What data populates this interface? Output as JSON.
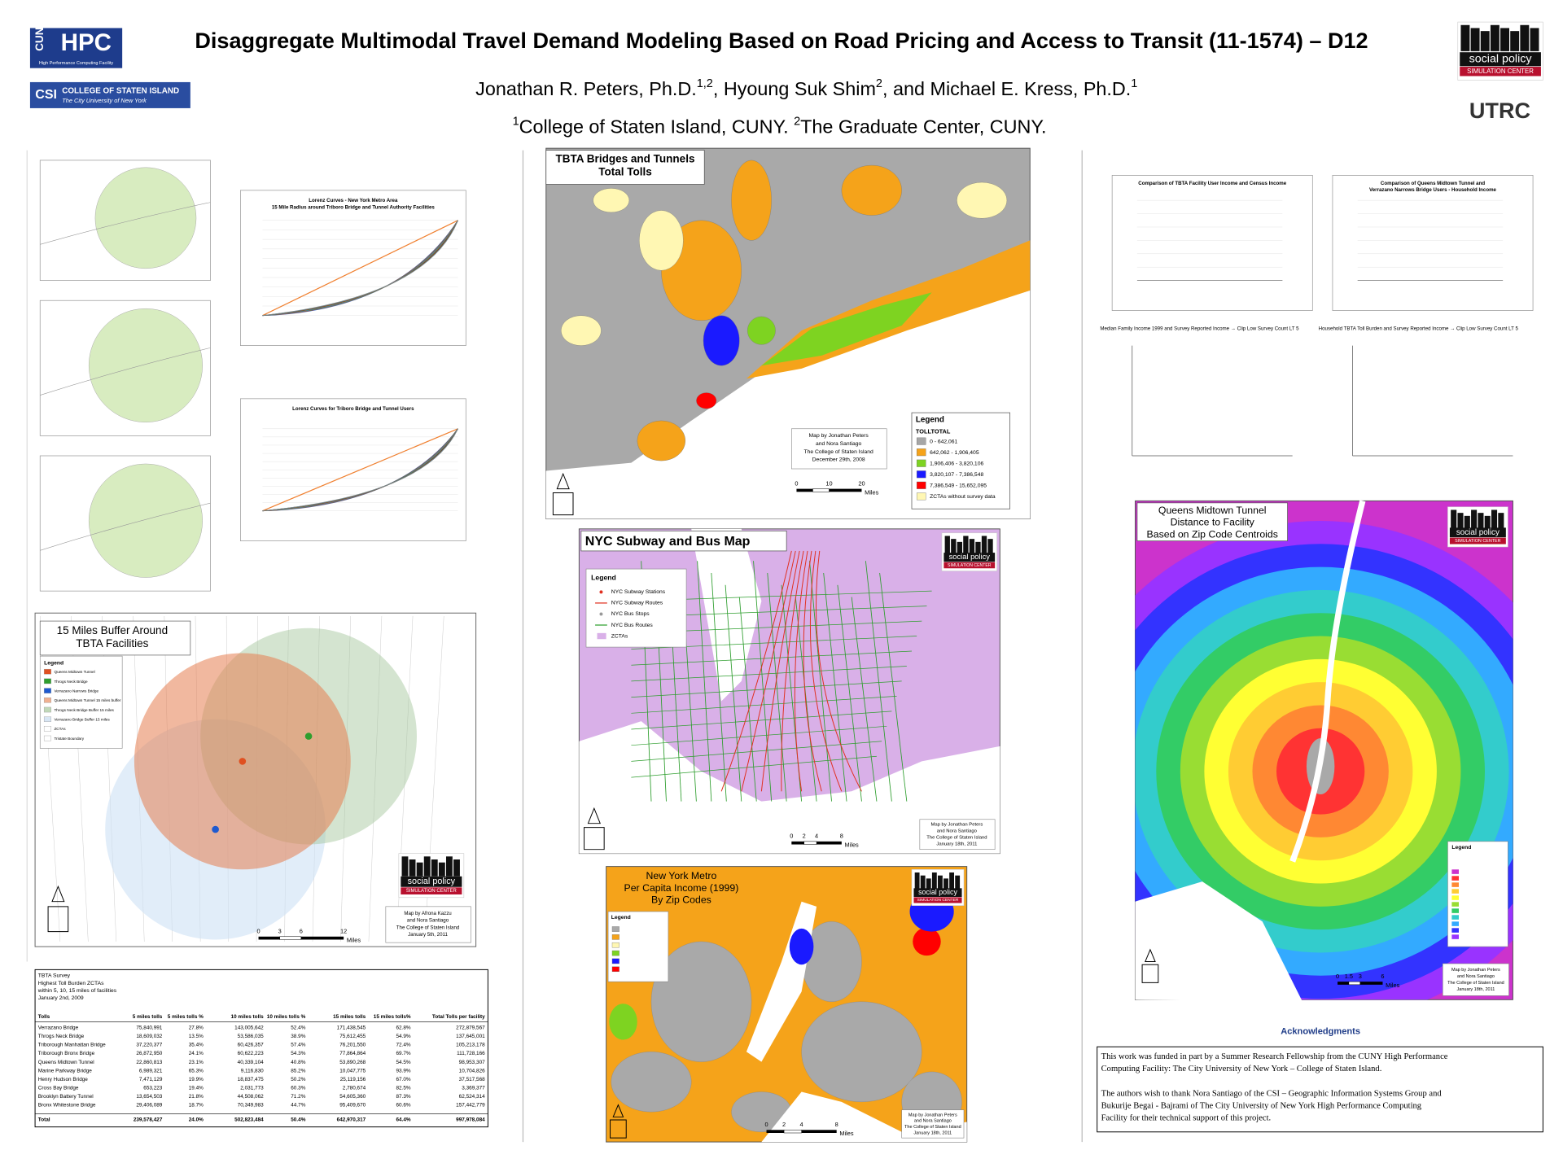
{
  "header": {
    "title": "Disaggregate Multimodal Travel Demand Modeling Based on Road Pricing and Access to Transit (11-1574) – D12",
    "authors": [
      "Jonathan R. Peters, Ph.D.",
      "1,2",
      ", Hyoung Suk Shim",
      "2",
      ", and Michael E. Kress, Ph.D.",
      "1"
    ],
    "affiliations": [
      "1",
      "College of Staten Island, CUNY. ",
      "2",
      "The Graduate Center, CUNY."
    ]
  },
  "logos": {
    "cuny": "CUNY",
    "hpc": "HPC",
    "hpc_sub": "High Performance Computing Facility",
    "csi": "CSI",
    "csi_name": "COLLEGE OF STATEN ISLAND",
    "csi_sub": "The City University of New York",
    "spsc": "social policy",
    "spsc_sub": "SIMULATION CENTER",
    "utrc": "UTRC"
  },
  "lorenz": {
    "chart1_title": [
      "Lorenz Curves - New York Metro Area",
      "15 Mile Radius around Triboro Bridge and Tunnel Authority Facilities"
    ],
    "chart2_title": [
      "Lorenz Curves for Triboro Bridge and Tunnel Users"
    ]
  },
  "buffer_map": {
    "title": [
      "15 Miles Buffer Around",
      "TBTA Facilities"
    ],
    "legend_title": "Legend",
    "legend": [
      "Queens Midtown Tunnel",
      "Throgs Neck Bridge",
      "Verrazano Narrows Bridge",
      "Queens Midtown Tunnel 15 miles buffer",
      "Throgs Neck Bridge Buffer 15 miles",
      "Verrazano Bridge Buffer 15 miles",
      "ZCTAs",
      "Tristate Boundary"
    ],
    "credit": [
      "Map by Afrona Kazzu",
      "and Nora Santiago",
      "The College of Staten Island",
      "January 5th, 2011"
    ],
    "scale": [
      "0",
      "3",
      "6",
      "12",
      "Miles"
    ]
  },
  "table": {
    "caption": [
      "TBTA Survey",
      "Highest Toll Burden ZCTAs",
      "within 5, 10, 15 miles of facilities",
      "January 2nd, 2009"
    ],
    "header": [
      "Tolls",
      "5 miles tolls",
      "5 miles tolls %",
      "10 miles tolls",
      "10 miles tolls %",
      "15 miles tolls",
      "15 miles tolls%",
      "Total Tolls per facility"
    ],
    "rows": [
      [
        "Verrazano Bridge",
        "75,840,991",
        "27.8%",
        "143,005,642",
        "52.4%",
        "171,438,545",
        "62.8%",
        "272,879,567"
      ],
      [
        "Throgs Neck Bridge",
        "18,609,032",
        "13.5%",
        "53,586,035",
        "38.9%",
        "75,612,455",
        "54.9%",
        "137,645,001"
      ],
      [
        "Triborough Manhattan Bridge",
        "37,220,377",
        "35.4%",
        "60,426,357",
        "57.4%",
        "76,201,550",
        "72.4%",
        "105,213,178"
      ],
      [
        "Triborough Bronx Bridge",
        "26,872,950",
        "24.1%",
        "60,622,223",
        "54.3%",
        "77,864,864",
        "69.7%",
        "111,728,166"
      ],
      [
        "Queens Midtown Tunnel",
        "22,860,813",
        "23.1%",
        "40,339,104",
        "40.8%",
        "53,890,268",
        "54.5%",
        "98,953,307"
      ],
      [
        "Marine Parkway Bridge",
        "6,989,321",
        "65.3%",
        "9,116,830",
        "85.2%",
        "10,047,775",
        "93.9%",
        "10,704,826"
      ],
      [
        "Henry Hudson Bridge",
        "7,471,129",
        "19.9%",
        "18,837,475",
        "50.2%",
        "25,119,156",
        "67.0%",
        "37,517,568"
      ],
      [
        "Cross Bay Bridge",
        "653,223",
        "19.4%",
        "2,031,773",
        "60.3%",
        "2,780,674",
        "82.5%",
        "3,369,377"
      ],
      [
        "Brooklyn Battery Tunnel",
        "13,654,503",
        "21.8%",
        "44,508,062",
        "71.2%",
        "54,605,360",
        "87.3%",
        "62,524,314"
      ],
      [
        "Bronx Whitestone Bridge",
        "29,406,089",
        "18.7%",
        "70,349,983",
        "44.7%",
        "95,409,670",
        "60.6%",
        "157,442,779"
      ]
    ],
    "total": [
      "Total",
      "239,578,427",
      "24.0%",
      "502,823,484",
      "50.4%",
      "642,970,317",
      "64.4%",
      "997,978,084"
    ]
  },
  "tolls_map": {
    "title": [
      "TBTA Bridges and Tunnels",
      "Total Tolls"
    ],
    "legend_title": "Legend",
    "field": "TOLLTOTAL",
    "legend": [
      {
        "label": "0 - 642,061",
        "color": "#a6a6a6"
      },
      {
        "label": "642,062 - 1,906,405",
        "color": "#f5a31a"
      },
      {
        "label": "1,906,406 - 3,820,106",
        "color": "#7ed321"
      },
      {
        "label": "3,820,107 - 7,386,548",
        "color": "#1a1aff"
      },
      {
        "label": "7,386,549 - 15,652,095",
        "color": "#ff0000"
      },
      {
        "label": "ZCTAs without survey data",
        "color": "#fff7b3"
      }
    ],
    "credit": [
      "Map by Jonathan Peters",
      "and Nora Santiago",
      "The College of Staten Island",
      "December 29th, 2008"
    ],
    "scale": [
      "0",
      "10",
      "20",
      "Miles"
    ]
  },
  "subway_map": {
    "title": "NYC Subway and Bus Map",
    "legend_title": "Legend",
    "legend": [
      {
        "label": "NYC Subway Stations",
        "color": "#e03020"
      },
      {
        "label": "NYC Subway Routes",
        "color": "#e03020"
      },
      {
        "label": "NYC Bus Stops",
        "color": "#999999"
      },
      {
        "label": "NYC Bus Routes",
        "color": "#2e9e2e"
      },
      {
        "label": "ZCTAs",
        "color": "#d9b0e8"
      }
    ],
    "credit": [
      "Map by Jonathan Peters",
      "and Nora Santiago",
      "The College of Staten Island",
      "January 18th, 2011"
    ],
    "scale": [
      "0",
      "2",
      "4",
      "8",
      "Miles"
    ]
  },
  "income_map": {
    "title": [
      "New York Metro",
      "Per Capita Income (1999)",
      "By Zip Codes"
    ],
    "legend_title": "Legend",
    "credit": [
      "Map by Jonathan Peters",
      "and Nora Santiago",
      "The College of Staten Island",
      "January 18th, 2011"
    ],
    "scale": [
      "0",
      "2",
      "4",
      "8",
      "Miles"
    ]
  },
  "income_charts": {
    "chart1_title": [
      "Comparison of TBTA Facility User Income and Census Income"
    ],
    "chart2_title": [
      "Comparison of Queens Midtown Tunnel and",
      "Verrazano Narrows Bridge Users - Household Income"
    ],
    "scatter1_caption": "Median Family Income 1999 and Survey Reported Income → Clip Low Survey Count LT 5",
    "scatter2_caption": "Household TBTA Toll Burden and Survey Reported Income → Clip Low Survey Count LT 5"
  },
  "distance_map": {
    "title": [
      "Queens Midtown Tunnel",
      "Distance to Facility",
      "Based on Zip Code Centroids"
    ],
    "legend_title": "Legend",
    "credit": [
      "Map by Jonathan Peters",
      "and Nora Santiago",
      "The College of Staten Island",
      "January 18th, 2011"
    ],
    "scale": [
      "0",
      "1.5",
      "3",
      "6",
      "Miles"
    ]
  },
  "acknowledgments": {
    "title": "Acknowledgments",
    "lines": [
      "This work was funded in part by a Summer Research Fellowship from the CUNY High Performance",
      "Computing Facility: The City University of New York – College of Staten Island.",
      "",
      "The authors wish to thank Nora Santiago of the CSI – Geographic Information Systems Group and",
      "Bukurije Begai - Bajrami of The City University of New York High Performance Computing",
      "Facility for their technical support of this project."
    ]
  }
}
